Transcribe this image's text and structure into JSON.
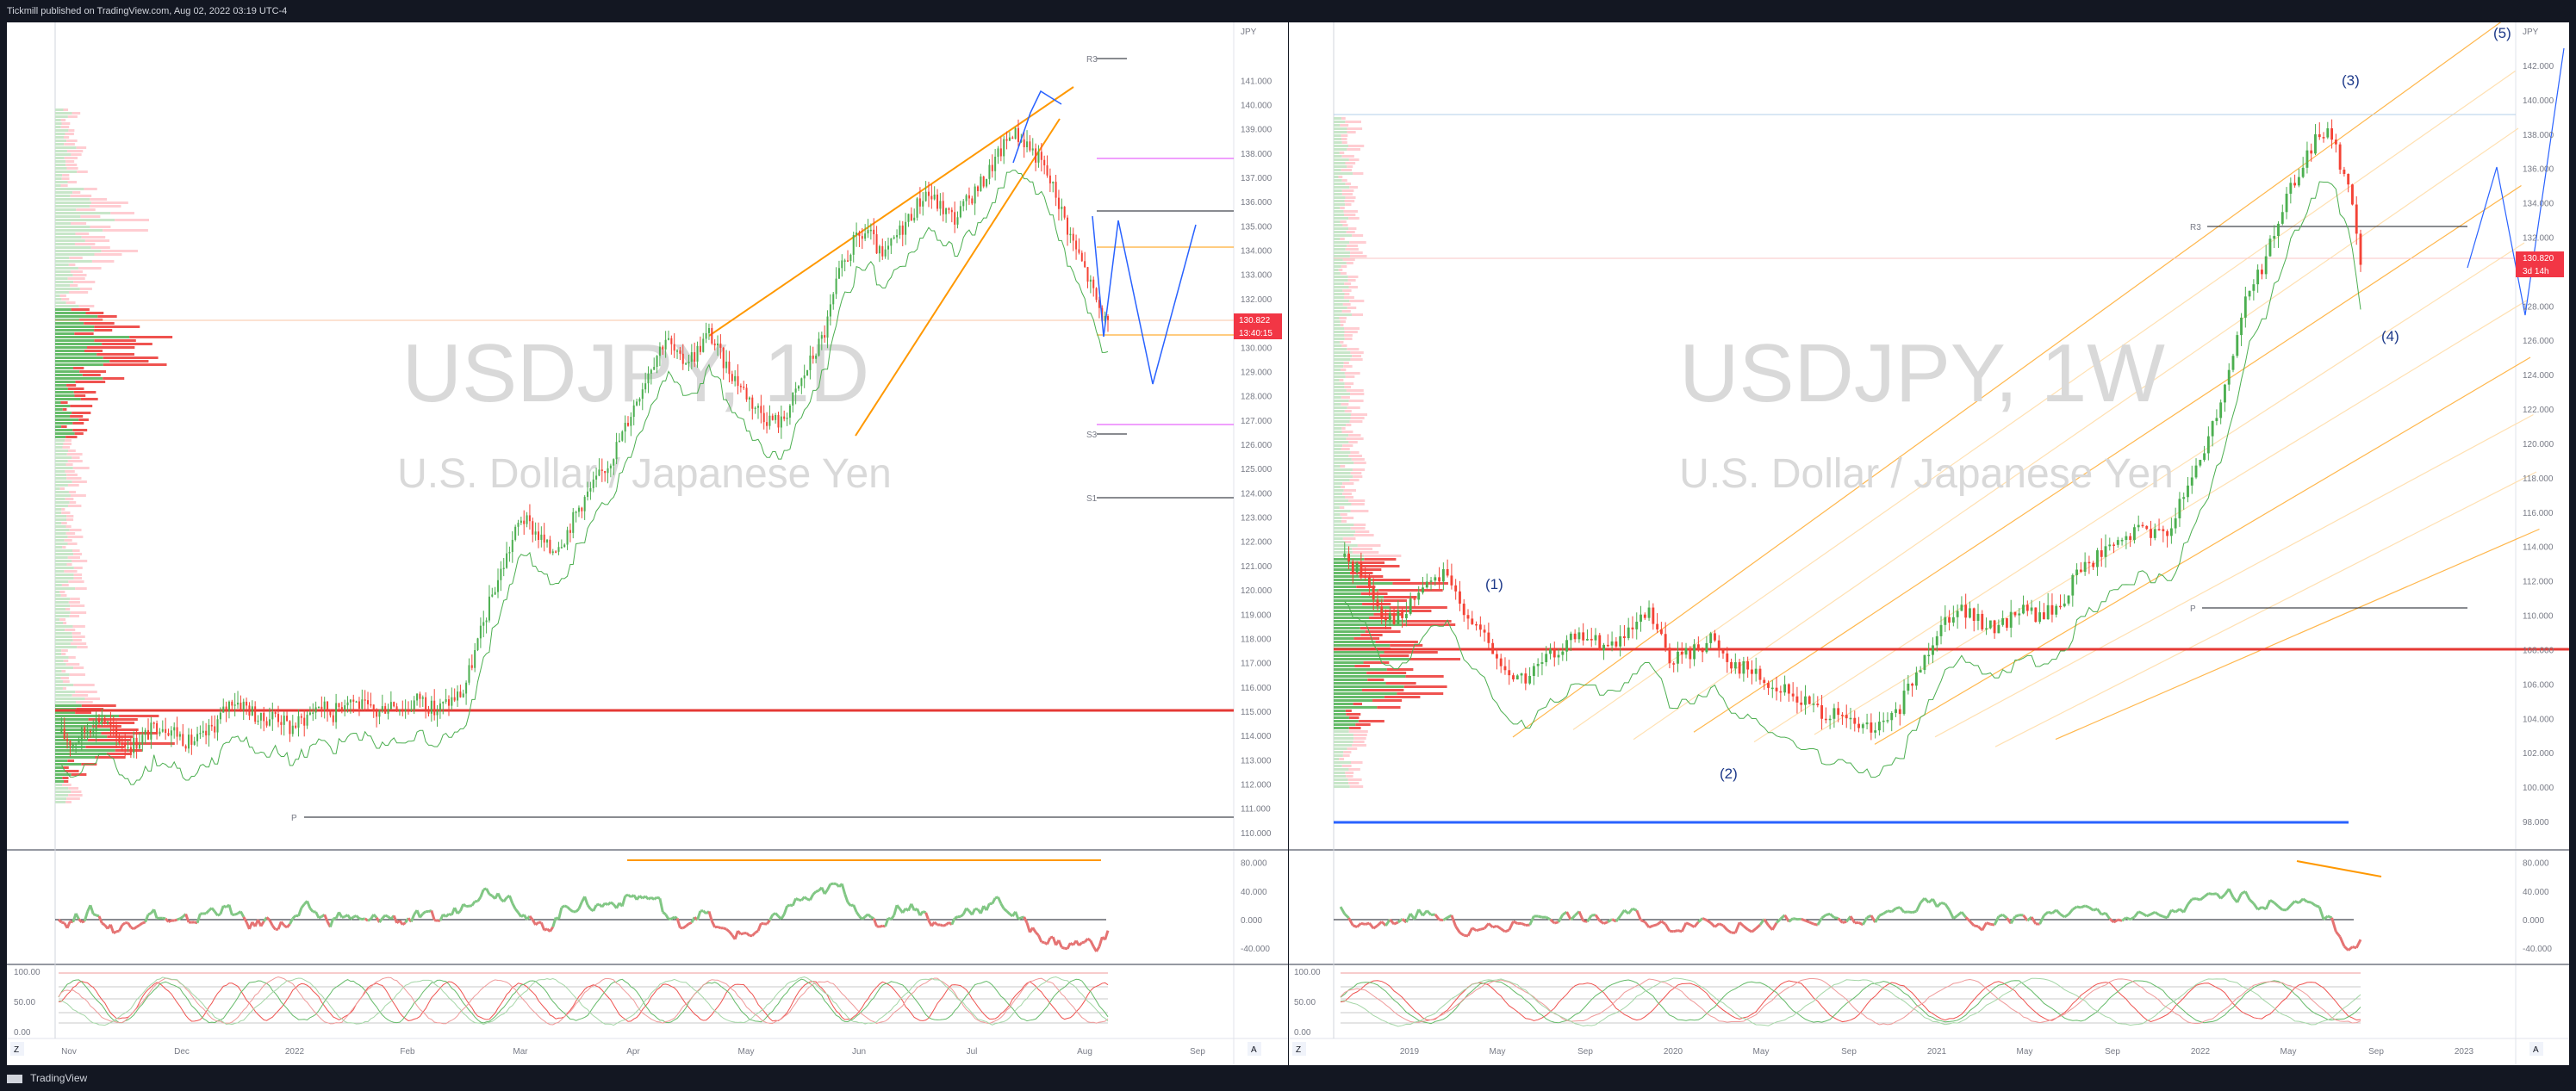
{
  "header": {
    "published_text": "Tickmill published on TradingView.com, Aug 02, 2022 03:19 UTC-4"
  },
  "footer": {
    "brand": "TradingView"
  },
  "charts": [
    {
      "symbol": "USDJPY, 1D",
      "description": "U.S. Dollar / Japanese Yen",
      "currency": "JPY",
      "price_tag": "130.822",
      "countdown_tag": "13:40:15",
      "pivot_labels": [
        "R3",
        "S3",
        "S1",
        "P"
      ],
      "price_ticks": [
        "141.000",
        "140.000",
        "139.000",
        "138.000",
        "137.000",
        "136.000",
        "135.000",
        "134.000",
        "133.000",
        "132.000",
        "131.000",
        "130.000",
        "129.000",
        "128.000",
        "127.000",
        "126.000",
        "125.000",
        "124.000",
        "123.000",
        "122.000",
        "121.000",
        "120.000",
        "119.000",
        "118.000",
        "117.000",
        "116.000",
        "115.000",
        "114.000",
        "113.000",
        "112.000",
        "111.000",
        "110.000"
      ],
      "time_ticks": [
        "Nov",
        "Dec",
        "2022",
        "Feb",
        "Mar",
        "Apr",
        "May",
        "Jun",
        "Jul",
        "Aug",
        "Sep"
      ],
      "rsi_ticks": [
        "80.000",
        "40.000",
        "0.000",
        "-40.000"
      ],
      "stoch_ticks": [
        "100.00",
        "50.00",
        "0.00"
      ],
      "corner_buttons": [
        "Z",
        "A"
      ]
    },
    {
      "symbol": "USDJPY, 1W",
      "description": "U.S. Dollar / Japanese Yen",
      "currency": "JPY",
      "price_tag": "130.820",
      "countdown_tag": "3d 14h",
      "pivot_labels": [
        "R3",
        "P"
      ],
      "wave_labels": [
        "(1)",
        "(2)",
        "(3)",
        "(4)",
        "(5)"
      ],
      "price_ticks": [
        "142.000",
        "140.000",
        "138.000",
        "136.000",
        "134.000",
        "132.000",
        "130.000",
        "128.000",
        "126.000",
        "124.000",
        "122.000",
        "120.000",
        "118.000",
        "116.000",
        "114.000",
        "112.000",
        "110.000",
        "108.000",
        "106.000",
        "104.000",
        "102.000",
        "100.000",
        "98.000"
      ],
      "time_ticks": [
        "2019",
        "May",
        "Sep",
        "2020",
        "May",
        "Sep",
        "2021",
        "May",
        "Sep",
        "2022",
        "May",
        "Sep",
        "2023"
      ],
      "rsi_ticks": [
        "80.000",
        "40.000",
        "0.000",
        "-40.000"
      ],
      "stoch_ticks": [
        "100.00",
        "50.00",
        "0.00"
      ],
      "corner_buttons": [
        "Z",
        "A"
      ]
    }
  ],
  "colors": {
    "up": "#4caf50",
    "down": "#f44336",
    "pivot": "#131722",
    "support": "#e040fb",
    "trend": "#ff9800",
    "projection": "#2962ff"
  },
  "chart_data": [
    {
      "type": "candlestick",
      "title": "USDJPY, 1D",
      "ylim": [
        109.5,
        142.5
      ],
      "close_path": [
        [
          0,
          114.1
        ],
        [
          5,
          113.7
        ],
        [
          10,
          114.3
        ],
        [
          15,
          114.8
        ],
        [
          20,
          113.9
        ],
        [
          25,
          113.6
        ],
        [
          30,
          114.0
        ],
        [
          35,
          114.5
        ],
        [
          40,
          114.2
        ],
        [
          45,
          113.7
        ],
        [
          50,
          113.9
        ],
        [
          55,
          114.6
        ],
        [
          60,
          115.5
        ],
        [
          65,
          115.2
        ],
        [
          70,
          114.6
        ],
        [
          75,
          114.9
        ],
        [
          80,
          114.3
        ],
        [
          85,
          114.7
        ],
        [
          90,
          115.3
        ],
        [
          95,
          114.9
        ],
        [
          100,
          115.6
        ],
        [
          105,
          115.2
        ],
        [
          110,
          114.9
        ],
        [
          115,
          115.4
        ],
        [
          120,
          115.1
        ],
        [
          125,
          115.6
        ],
        [
          130,
          115.0
        ],
        [
          135,
          115.4
        ],
        [
          140,
          115.8
        ],
        [
          145,
          117.8
        ],
        [
          150,
          119.8
        ],
        [
          155,
          121.4
        ],
        [
          160,
          123.0
        ],
        [
          165,
          122.4
        ],
        [
          170,
          121.6
        ],
        [
          175,
          122.2
        ],
        [
          180,
          123.4
        ],
        [
          185,
          124.3
        ],
        [
          190,
          125.2
        ],
        [
          195,
          126.4
        ],
        [
          200,
          127.9
        ],
        [
          205,
          129.3
        ],
        [
          210,
          130.4
        ],
        [
          215,
          129.4
        ],
        [
          220,
          129.7
        ],
        [
          225,
          130.6
        ],
        [
          230,
          129.4
        ],
        [
          235,
          128.6
        ],
        [
          240,
          127.7
        ],
        [
          245,
          127.1
        ],
        [
          250,
          126.9
        ],
        [
          255,
          128.1
        ],
        [
          260,
          129.4
        ],
        [
          265,
          130.6
        ],
        [
          270,
          133.0
        ],
        [
          275,
          134.3
        ],
        [
          280,
          134.8
        ],
        [
          285,
          133.6
        ],
        [
          290,
          134.6
        ],
        [
          295,
          135.5
        ],
        [
          300,
          136.4
        ],
        [
          305,
          135.8
        ],
        [
          310,
          135.3
        ],
        [
          315,
          136.1
        ],
        [
          320,
          136.9
        ],
        [
          325,
          137.9
        ],
        [
          330,
          138.9
        ],
        [
          335,
          138.4
        ],
        [
          340,
          137.6
        ],
        [
          345,
          136.3
        ],
        [
          350,
          134.6
        ],
        [
          355,
          133.2
        ],
        [
          360,
          131.6
        ],
        [
          363,
          130.8
        ]
      ]
    },
    {
      "type": "candlestick",
      "title": "USDJPY, 1W",
      "ylim": [
        97,
        143.5
      ],
      "close_path": [
        [
          0,
          113.4
        ],
        [
          5,
          112.6
        ],
        [
          10,
          110.2
        ],
        [
          15,
          109.8
        ],
        [
          20,
          111.7
        ],
        [
          25,
          112.3
        ],
        [
          30,
          110.5
        ],
        [
          35,
          108.6
        ],
        [
          40,
          106.7
        ],
        [
          45,
          106.3
        ],
        [
          50,
          107.4
        ],
        [
          55,
          108.5
        ],
        [
          60,
          108.7
        ],
        [
          65,
          108.2
        ],
        [
          70,
          108.8
        ],
        [
          75,
          110.1
        ],
        [
          80,
          107.5
        ],
        [
          85,
          107.8
        ],
        [
          90,
          108.7
        ],
        [
          95,
          107.3
        ],
        [
          100,
          106.8
        ],
        [
          105,
          105.9
        ],
        [
          110,
          105.3
        ],
        [
          115,
          104.7
        ],
        [
          120,
          104.1
        ],
        [
          125,
          103.6
        ],
        [
          130,
          103.3
        ],
        [
          135,
          104.2
        ],
        [
          140,
          106.5
        ],
        [
          145,
          109.2
        ],
        [
          150,
          110.6
        ],
        [
          155,
          109.6
        ],
        [
          160,
          109.3
        ],
        [
          165,
          110.4
        ],
        [
          170,
          109.9
        ],
        [
          175,
          110.6
        ],
        [
          180,
          112.8
        ],
        [
          185,
          113.6
        ],
        [
          190,
          114.2
        ],
        [
          195,
          115.2
        ],
        [
          200,
          114.6
        ],
        [
          205,
          116.7
        ],
        [
          210,
          119.7
        ],
        [
          215,
          123.4
        ],
        [
          220,
          128.4
        ],
        [
          225,
          130.7
        ],
        [
          230,
          134.3
        ],
        [
          235,
          136.7
        ],
        [
          240,
          138.7
        ],
        [
          245,
          134.9
        ],
        [
          248,
          130.8
        ]
      ]
    }
  ]
}
